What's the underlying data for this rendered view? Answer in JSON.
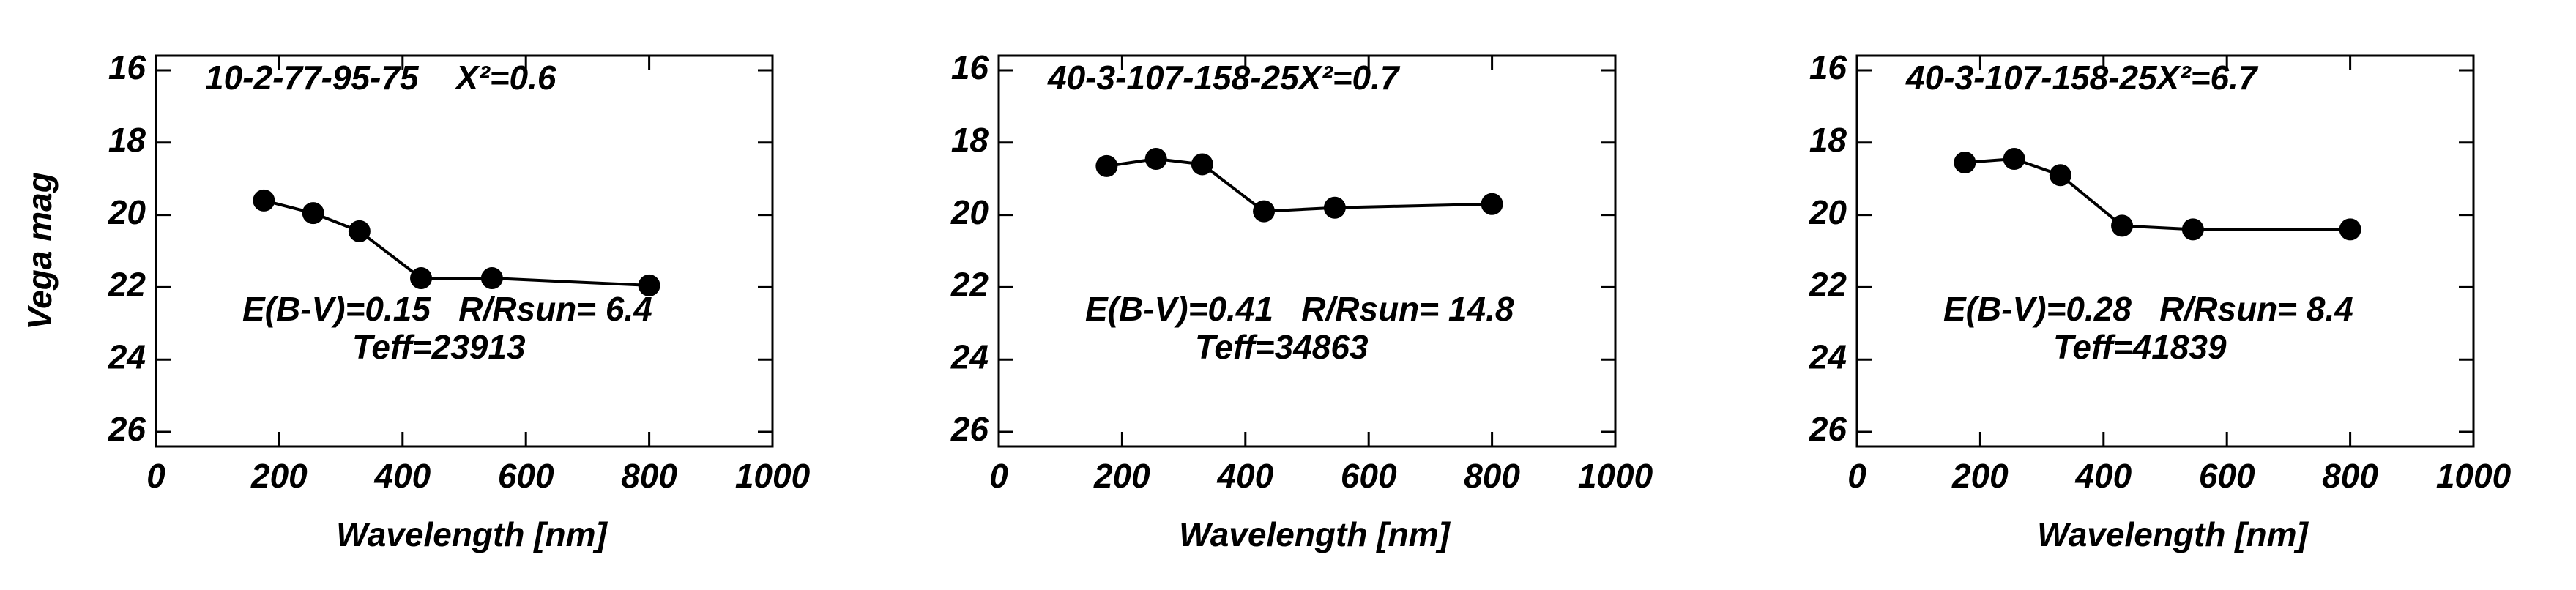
{
  "chart_data": [
    {
      "type": "line",
      "title": "10-2-77-95-75    X²=0.6",
      "annotations": [
        "E(B-V)=0.15   R/Rsun= 6.4",
        "Teff=23913"
      ],
      "xlabel": "Wavelength [nm]",
      "ylabel": "Vega mag",
      "x": [
        175,
        255,
        330,
        430,
        545,
        800
      ],
      "values": [
        19.6,
        19.95,
        20.45,
        21.75,
        21.75,
        21.95
      ],
      "color": "#000000",
      "xlim": [
        0,
        1000
      ],
      "ylim": [
        16,
        26
      ],
      "xticks": [
        0,
        200,
        400,
        600,
        800,
        1000
      ],
      "yticks": [
        16,
        18,
        20,
        22,
        24,
        26
      ],
      "y_inverted": true
    },
    {
      "type": "line",
      "title": "40-3-107-158-25X²=0.7",
      "annotations": [
        "E(B-V)=0.41   R/Rsun= 14.8",
        "Teff=34863"
      ],
      "xlabel": "Wavelength [nm]",
      "x": [
        175,
        255,
        330,
        430,
        545,
        800
      ],
      "values": [
        18.65,
        18.45,
        18.6,
        19.9,
        19.8,
        19.7
      ],
      "color": "#000000",
      "xlim": [
        0,
        1000
      ],
      "ylim": [
        16,
        26
      ],
      "xticks": [
        0,
        200,
        400,
        600,
        800,
        1000
      ],
      "yticks": [
        16,
        18,
        20,
        22,
        24,
        26
      ],
      "y_inverted": true
    },
    {
      "type": "line",
      "title": "40-3-107-158-25X²=6.7",
      "annotations": [
        "E(B-V)=0.28   R/Rsun= 8.4",
        "Teff=41839"
      ],
      "xlabel": "Wavelength [nm]",
      "x": [
        175,
        255,
        330,
        430,
        545,
        800
      ],
      "values": [
        18.55,
        18.45,
        18.9,
        20.3,
        20.4,
        20.4
      ],
      "color": "#000000",
      "xlim": [
        0,
        1000
      ],
      "ylim": [
        16,
        26
      ],
      "xticks": [
        0,
        200,
        400,
        600,
        800,
        1000
      ],
      "yticks": [
        16,
        18,
        20,
        22,
        24,
        26
      ],
      "y_inverted": true
    }
  ]
}
